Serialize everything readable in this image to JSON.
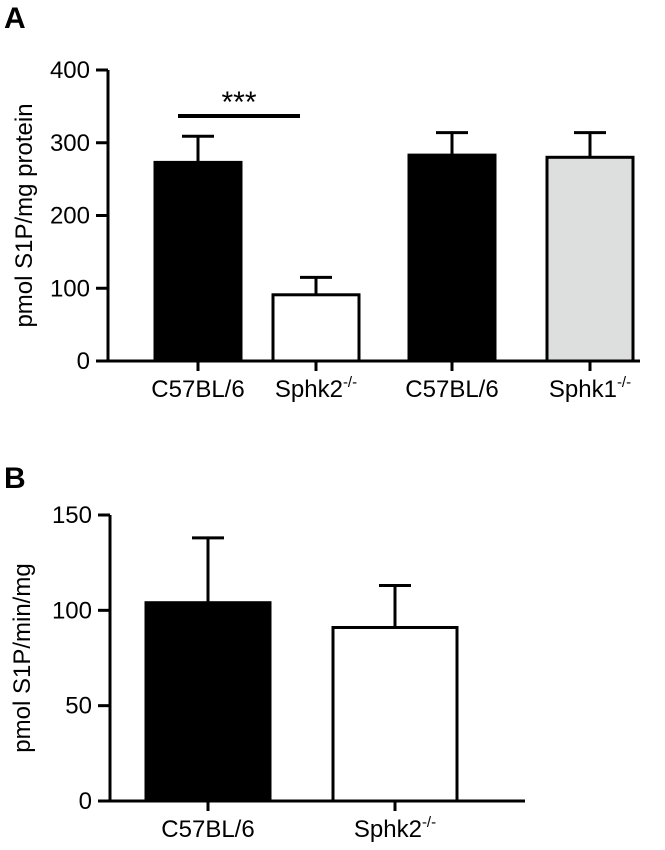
{
  "chart_data": [
    {
      "panel": "A",
      "type": "bar",
      "ylabel": "pmol S1P/mg protein",
      "xlabel": "",
      "ylim": [
        0,
        400
      ],
      "yticks": [
        0,
        100,
        200,
        300,
        400
      ],
      "categories": [
        {
          "base": "C57BL/6",
          "sup": ""
        },
        {
          "base": "Sphk2",
          "sup": "-/-"
        },
        {
          "base": "C57BL/6",
          "sup": ""
        },
        {
          "base": "Sphk1",
          "sup": "-/-"
        }
      ],
      "values": [
        273,
        91,
        283,
        280
      ],
      "errors": [
        36,
        24,
        31,
        34
      ],
      "fills": [
        "#000000",
        "#ffffff",
        "#000000",
        "#dcdfde"
      ],
      "significance": {
        "from": 0,
        "to": 1,
        "label": "***"
      },
      "grid": false
    },
    {
      "panel": "B",
      "type": "bar",
      "ylabel": "pmol S1P/min/mg",
      "xlabel": "",
      "ylim": [
        0,
        150
      ],
      "yticks": [
        0,
        50,
        100,
        150
      ],
      "categories": [
        {
          "base": "C57BL/6",
          "sup": ""
        },
        {
          "base": "Sphk2",
          "sup": "-/-"
        }
      ],
      "values": [
        104,
        91
      ],
      "errors": [
        34,
        22
      ],
      "fills": [
        "#000000",
        "#ffffff"
      ],
      "grid": false
    }
  ]
}
